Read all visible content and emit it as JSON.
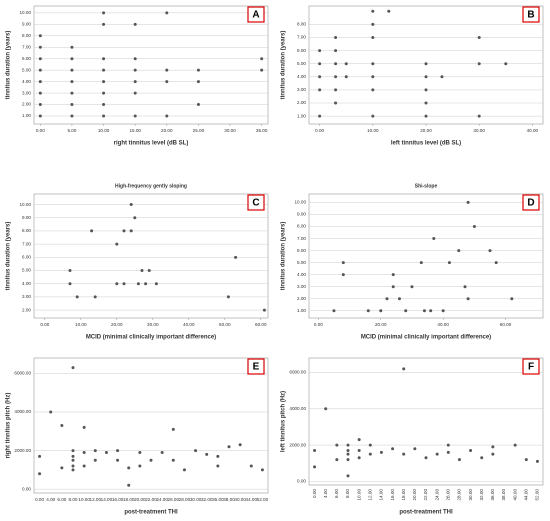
{
  "chart_data": [
    {
      "type": "scatter",
      "panel": "A",
      "xlabel": "right tinnitus level (dB SL)",
      "ylabel": "tinnitus duration (years)",
      "xlim": [
        -1,
        36
      ],
      "ylim": [
        0.3,
        10.6
      ],
      "xticks": [
        {
          "value": 0,
          "label": "0.00"
        },
        {
          "value": 5,
          "label": "5.00"
        },
        {
          "value": 10,
          "label": "10.00"
        },
        {
          "value": 15,
          "label": "15.00"
        },
        {
          "value": 20,
          "label": "20.00"
        },
        {
          "value": 25,
          "label": "25.00"
        },
        {
          "value": 30,
          "label": "30.00"
        },
        {
          "value": 35,
          "label": "35.00"
        }
      ],
      "yticks": [
        {
          "value": 1,
          "label": "1.00"
        },
        {
          "value": 2,
          "label": "2.00"
        },
        {
          "value": 3,
          "label": "3.00"
        },
        {
          "value": 4,
          "label": "4.00"
        },
        {
          "value": 5,
          "label": "5.00"
        },
        {
          "value": 6,
          "label": "6.00"
        },
        {
          "value": 7,
          "label": "7.00"
        },
        {
          "value": 8,
          "label": "8.00"
        },
        {
          "value": 9,
          "label": "9.00"
        },
        {
          "value": 10,
          "label": "10.00"
        }
      ],
      "x": [
        0,
        0,
        0,
        0,
        0,
        0,
        0,
        0,
        5,
        5,
        5,
        5,
        5,
        5,
        5,
        10,
        10,
        10,
        10,
        10,
        10,
        10,
        10,
        15,
        15,
        15,
        15,
        15,
        15,
        20,
        20,
        20,
        20,
        25,
        25,
        25,
        35,
        35
      ],
      "values": [
        1,
        2,
        3,
        4,
        5,
        6,
        7,
        8,
        1,
        2,
        3,
        4,
        5,
        6,
        7,
        1,
        2,
        3,
        4,
        5,
        6,
        9,
        10,
        1,
        3,
        4,
        5,
        6,
        9,
        1,
        4,
        5,
        10,
        2,
        4,
        5,
        5,
        6
      ]
    },
    {
      "type": "scatter",
      "panel": "B",
      "xlabel": "left tinnitus level (dB SL)",
      "ylabel": "tinnitus duration (years)",
      "xlim": [
        -2,
        42
      ],
      "ylim": [
        0.4,
        9.4
      ],
      "xticks": [
        {
          "value": 0,
          "label": "0.00"
        },
        {
          "value": 10,
          "label": "10.00"
        },
        {
          "value": 20,
          "label": "20.00"
        },
        {
          "value": 30,
          "label": "30.00"
        },
        {
          "value": 40,
          "label": "40.00"
        }
      ],
      "yticks": [
        {
          "value": 1,
          "label": "1.00"
        },
        {
          "value": 2,
          "label": "2.00"
        },
        {
          "value": 3,
          "label": "3.00"
        },
        {
          "value": 4,
          "label": "4.00"
        },
        {
          "value": 5,
          "label": "5.00"
        },
        {
          "value": 6,
          "label": "6.00"
        },
        {
          "value": 7,
          "label": "7.00"
        },
        {
          "value": 8,
          "label": "8.00"
        }
      ],
      "x": [
        0,
        0,
        0,
        0,
        0,
        3,
        3,
        3,
        3,
        3,
        3,
        5,
        5,
        10,
        10,
        10,
        10,
        10,
        10,
        10,
        13,
        20,
        20,
        20,
        20,
        20,
        23,
        30,
        30,
        30,
        35
      ],
      "values": [
        1,
        3,
        4,
        5,
        6,
        2,
        3,
        4,
        5,
        6,
        7,
        4,
        5,
        1,
        3,
        4,
        5,
        7,
        8,
        9,
        9,
        1,
        2,
        3,
        4,
        5,
        4,
        1,
        5,
        7,
        5
      ]
    },
    {
      "type": "scatter",
      "panel": "C",
      "title": "High-frequency gently sloping",
      "xlabel": "MCID (minimal clinically important difference)",
      "ylabel": "tinnitus duration (years)",
      "xlim": [
        -3,
        62
      ],
      "ylim": [
        1.4,
        10.8
      ],
      "xticks": [
        {
          "value": 0,
          "label": "0.00"
        },
        {
          "value": 10,
          "label": "10.00"
        },
        {
          "value": 20,
          "label": "20.00"
        },
        {
          "value": 30,
          "label": "30.00"
        },
        {
          "value": 40,
          "label": "40.00"
        },
        {
          "value": 50,
          "label": "50.00"
        },
        {
          "value": 60,
          "label": "60.00"
        }
      ],
      "yticks": [
        {
          "value": 2,
          "label": "2.00"
        },
        {
          "value": 3,
          "label": "3.00"
        },
        {
          "value": 4,
          "label": "4.00"
        },
        {
          "value": 5,
          "label": "5.00"
        },
        {
          "value": 6,
          "label": "6.00"
        },
        {
          "value": 7,
          "label": "7.00"
        },
        {
          "value": 8,
          "label": "8.00"
        },
        {
          "value": 9,
          "label": "9.00"
        },
        {
          "value": 10,
          "label": "10.00"
        }
      ],
      "x": [
        7,
        7,
        9,
        13,
        14,
        20,
        20,
        22,
        22,
        24,
        24,
        25,
        26,
        27,
        28,
        29,
        31,
        51,
        53,
        61
      ],
      "values": [
        5,
        4,
        3,
        8,
        3,
        4,
        7,
        8,
        4,
        8,
        10,
        9,
        4,
        5,
        4,
        5,
        4,
        3,
        6,
        2
      ]
    },
    {
      "type": "scatter",
      "panel": "D",
      "title": "Shi-slope",
      "xlabel": "MCID (minimal clinically important difference)",
      "ylabel": "tinnitus duration (years)",
      "xlim": [
        -3,
        72
      ],
      "ylim": [
        0.4,
        10.7
      ],
      "xticks": [
        {
          "value": 0,
          "label": "0.00"
        },
        {
          "value": 20,
          "label": "20.00"
        },
        {
          "value": 40,
          "label": "40.00"
        },
        {
          "value": 60,
          "label": "60.00"
        }
      ],
      "yticks": [
        {
          "value": 1,
          "label": "1.00"
        },
        {
          "value": 2,
          "label": "2.00"
        },
        {
          "value": 3,
          "label": "3.00"
        },
        {
          "value": 4,
          "label": "4.00"
        },
        {
          "value": 5,
          "label": "5.00"
        },
        {
          "value": 6,
          "label": "6.00"
        },
        {
          "value": 7,
          "label": "7.00"
        },
        {
          "value": 8,
          "label": "8.00"
        },
        {
          "value": 9,
          "label": "9.00"
        },
        {
          "value": 10,
          "label": "10.00"
        }
      ],
      "x": [
        5,
        8,
        8,
        16,
        20,
        22,
        24,
        24,
        26,
        28,
        30,
        33,
        34,
        36,
        37,
        40,
        42,
        45,
        47,
        48,
        48,
        50,
        55,
        57,
        62
      ],
      "values": [
        1,
        5,
        4,
        1,
        1,
        2,
        4,
        3,
        2,
        1,
        3,
        5,
        1,
        1,
        7,
        1,
        5,
        6,
        3,
        10,
        2,
        8,
        6,
        5,
        2
      ]
    },
    {
      "type": "scatter",
      "panel": "E",
      "xlabel": "post-treatment THI",
      "ylabel": "right tinnitus pitch (Hz)",
      "categories": [
        "0.00",
        "4.00",
        "6.00",
        "8.00",
        "10.00",
        "12.00",
        "14.00",
        "16.00",
        "18.00",
        "20.00",
        "22.00",
        "24.00",
        "26.00",
        "28.00",
        "30.00",
        "32.00",
        "36.00",
        "38.00",
        "40.00",
        "44.00",
        "52.00"
      ],
      "ylim": [
        -200,
        6800
      ],
      "yticks": [
        {
          "value": 0,
          "label": "0.00"
        },
        {
          "value": 2000,
          "label": "2000.00"
        },
        {
          "value": 4000,
          "label": "4000.00"
        },
        {
          "value": 6000,
          "label": "6000.00"
        }
      ],
      "x": [
        "0.00",
        "0.00",
        "4.00",
        "6.00",
        "6.00",
        "8.00",
        "8.00",
        "8.00",
        "8.00",
        "8.00",
        "8.00",
        "10.00",
        "10.00",
        "10.00",
        "12.00",
        "12.00",
        "14.00",
        "16.00",
        "16.00",
        "18.00",
        "18.00",
        "20.00",
        "20.00",
        "22.00",
        "24.00",
        "26.00",
        "26.00",
        "28.00",
        "30.00",
        "32.00",
        "36.00",
        "36.00",
        "38.00",
        "40.00",
        "44.00",
        "52.00"
      ],
      "values": [
        1700,
        800,
        4000,
        3300,
        1100,
        6300,
        2000,
        1700,
        1500,
        1200,
        1000,
        3200,
        1900,
        1200,
        2000,
        1500,
        1900,
        2000,
        1500,
        1100,
        200,
        1900,
        1200,
        1500,
        1900,
        3100,
        1500,
        1000,
        2000,
        1800,
        1700,
        1200,
        2200,
        2300,
        1200,
        1000
      ]
    },
    {
      "type": "scatter",
      "panel": "F",
      "xlabel": "post-treatment THI",
      "ylabel": "left tinnitus pitch (Hz)",
      "rotate_x": true,
      "categories": [
        "0.00",
        "4.00",
        "6.00",
        "8.00",
        "10.00",
        "12.00",
        "14.00",
        "16.00",
        "18.00",
        "20.00",
        "22.00",
        "24.00",
        "26.00",
        "28.00",
        "30.00",
        "32.00",
        "36.00",
        "38.00",
        "40.00",
        "44.00",
        "52.00"
      ],
      "ylim": [
        -200,
        6800
      ],
      "yticks": [
        {
          "value": 0,
          "label": "0.00"
        },
        {
          "value": 2000,
          "label": "2000.00"
        },
        {
          "value": 4000,
          "label": "4000.00"
        },
        {
          "value": 6000,
          "label": "6000.00"
        }
      ],
      "x": [
        "0.00",
        "0.00",
        "4.00",
        "6.00",
        "6.00",
        "8.00",
        "8.00",
        "8.00",
        "8.00",
        "8.00",
        "10.00",
        "10.00",
        "10.00",
        "12.00",
        "12.00",
        "14.00",
        "16.00",
        "18.00",
        "18.00",
        "20.00",
        "22.00",
        "24.00",
        "26.00",
        "26.00",
        "28.00",
        "30.00",
        "32.00",
        "36.00",
        "36.00",
        "40.00",
        "44.00",
        "52.00"
      ],
      "values": [
        1700,
        800,
        4000,
        2000,
        1200,
        2000,
        1700,
        1500,
        1200,
        300,
        2300,
        1700,
        1300,
        2000,
        1500,
        1600,
        1800,
        6200,
        1500,
        1800,
        1300,
        1500,
        2000,
        1600,
        1200,
        1700,
        1300,
        1900,
        1500,
        2000,
        1200,
        1100
      ]
    }
  ]
}
